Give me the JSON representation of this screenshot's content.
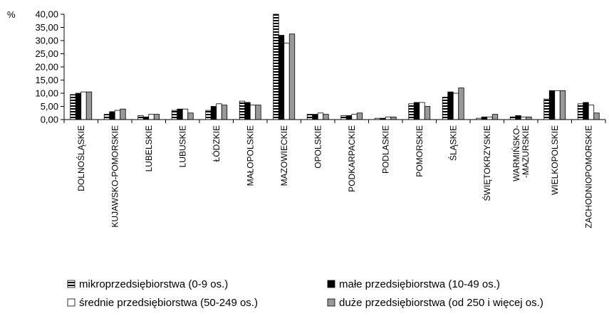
{
  "chart_data": {
    "type": "bar",
    "y_unit_label": "%",
    "ylim": [
      0,
      40
    ],
    "yticks": [
      "0,00",
      "5,00",
      "10,00",
      "15,00",
      "20,00",
      "25,00",
      "30,00",
      "35,00",
      "40,00"
    ],
    "grid": false,
    "legend_position": "bottom",
    "categories": [
      [
        "DOLNOŚLĄSKIE"
      ],
      [
        "KUJAWSKO-POMORSKIE"
      ],
      [
        "LUBELSKIE"
      ],
      [
        "LUBUSKIE"
      ],
      [
        "ŁÓDZKIE"
      ],
      [
        "MAŁOPOLSKIE"
      ],
      [
        "MAZOWIECKIE"
      ],
      [
        "OPOLSKIE"
      ],
      [
        "PODKARPACKIE"
      ],
      [
        "PODLASKIE"
      ],
      [
        "POMORSKIE"
      ],
      [
        "ŚLĄSKIE"
      ],
      [
        "ŚWIĘTOKRZYSKIE"
      ],
      [
        "WARMIŃSKO-",
        "-MAZURSKIE"
      ],
      [
        "WIELKOPOLSKIE"
      ],
      [
        "ZACHODNIOPOMORSKIE"
      ]
    ],
    "series": [
      {
        "name": "mikroprzedsiębiorstwa (0-9 os.)",
        "pattern": "stripes",
        "values": [
          9.5,
          2.0,
          1.5,
          3.5,
          3.5,
          7.0,
          40.0,
          2.0,
          1.5,
          0.5,
          6.0,
          8.5,
          0.5,
          1.0,
          7.8,
          6.0
        ]
      },
      {
        "name": "małe przedsiębiorstwa (10-49 os.)",
        "pattern": "solid-black",
        "values": [
          10.0,
          3.0,
          1.0,
          4.0,
          5.0,
          6.5,
          32.0,
          2.0,
          1.5,
          0.5,
          6.5,
          10.5,
          1.0,
          1.5,
          11.0,
          6.5
        ]
      },
      {
        "name": "średnie przedsiębiorstwa (50-249 os.)",
        "pattern": "white",
        "values": [
          10.5,
          3.5,
          2.0,
          4.0,
          6.0,
          5.5,
          29.0,
          2.5,
          2.0,
          1.0,
          6.5,
          10.0,
          1.0,
          1.0,
          11.0,
          5.5
        ]
      },
      {
        "name": "duże przedsiębiorstwa (od 250 i więcej os.)",
        "pattern": "gray",
        "values": [
          10.5,
          4.0,
          2.0,
          2.5,
          5.5,
          5.5,
          32.5,
          2.0,
          2.5,
          1.0,
          5.0,
          12.0,
          2.0,
          1.0,
          11.0,
          2.5
        ]
      }
    ]
  },
  "colors": {
    "gray_fill": "#999999",
    "black_fill": "#000000",
    "white_fill": "#ffffff",
    "stripe_dark": "#000000",
    "stripe_light": "#ffffff"
  }
}
